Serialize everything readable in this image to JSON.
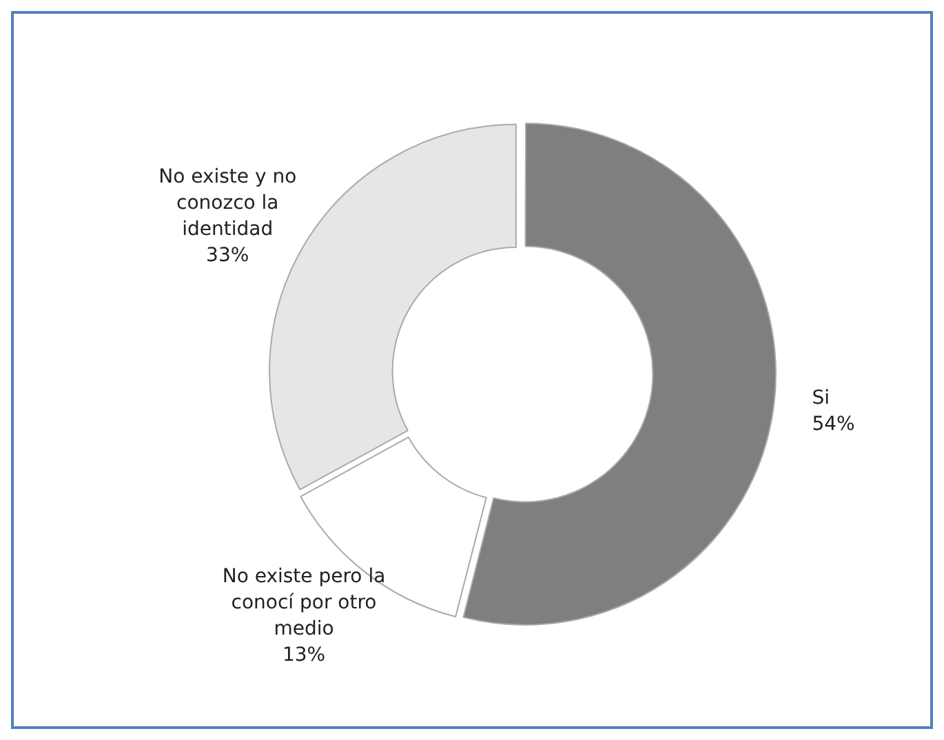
{
  "chart_data": {
    "type": "donut",
    "categories": [
      "Si",
      "No existe pero la conocí por otro medio",
      "No existe y no conozco la identidad"
    ],
    "values": [
      54,
      13,
      33
    ],
    "colors": [
      "#7f7f7f",
      "#ffffff",
      "#e6e6e6"
    ],
    "value_labels": [
      "54%",
      "13%",
      "33%"
    ],
    "legend": false
  }
}
